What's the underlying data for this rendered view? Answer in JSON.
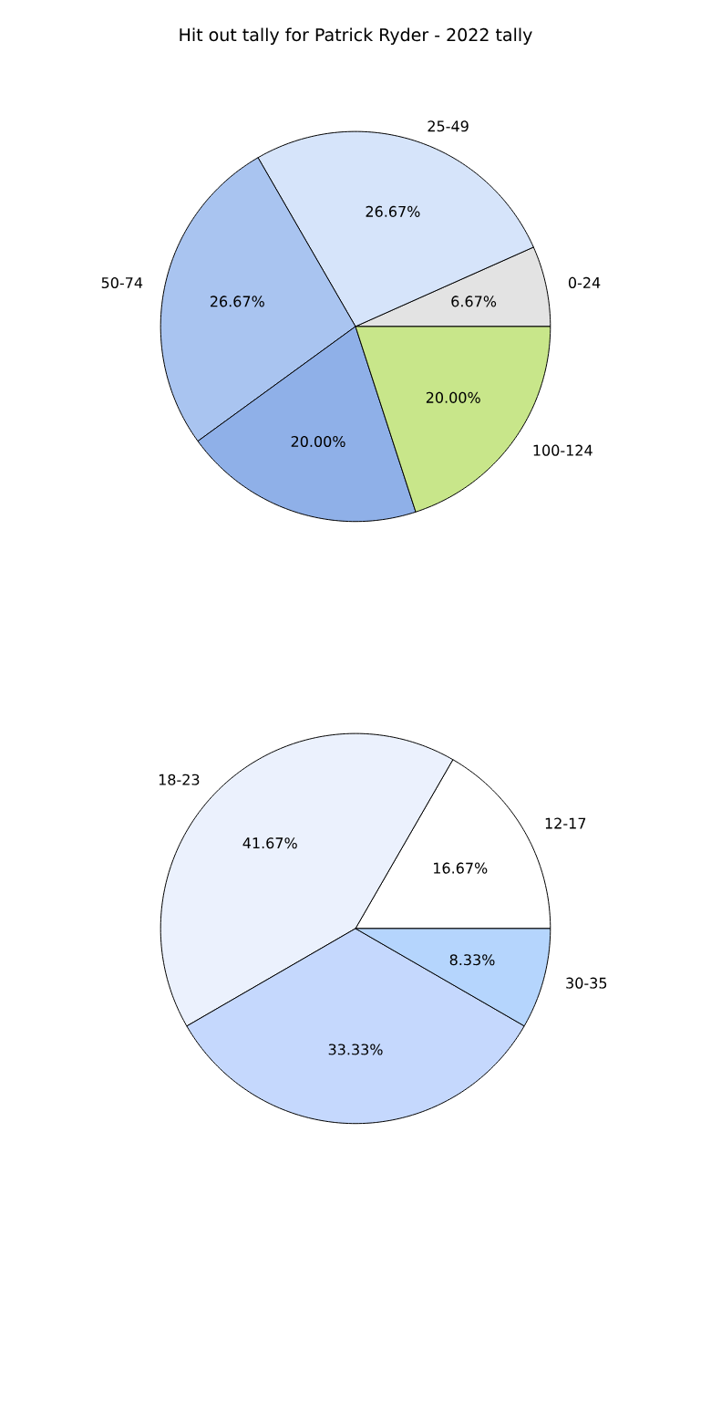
{
  "chart_data": [
    {
      "type": "pie",
      "title": "Hit out tally for Patrick Ryder - 2022 tally",
      "categories": [
        "0-24",
        "25-49",
        "50-74",
        null,
        "100-124"
      ],
      "values": [
        6.67,
        26.67,
        26.67,
        20.0,
        20.0
      ],
      "value_labels": [
        "6.67%",
        "26.67%",
        "26.67%",
        "20.00%",
        "20.00%"
      ],
      "colors": [
        "#e3e3e3",
        "#d6e4fa",
        "#a9c4f0",
        "#8fb0e8",
        "#c8e68a"
      ]
    },
    {
      "type": "pie",
      "categories": [
        "12-17",
        "18-23",
        null,
        "30-35"
      ],
      "values": [
        16.67,
        41.67,
        33.33,
        8.33
      ],
      "value_labels": [
        "16.67%",
        "41.67%",
        "33.33%",
        "8.33%"
      ],
      "colors": [
        "#ffffff",
        "#ebf1fd",
        "#c5d8fd",
        "#b5d5fd"
      ]
    }
  ]
}
